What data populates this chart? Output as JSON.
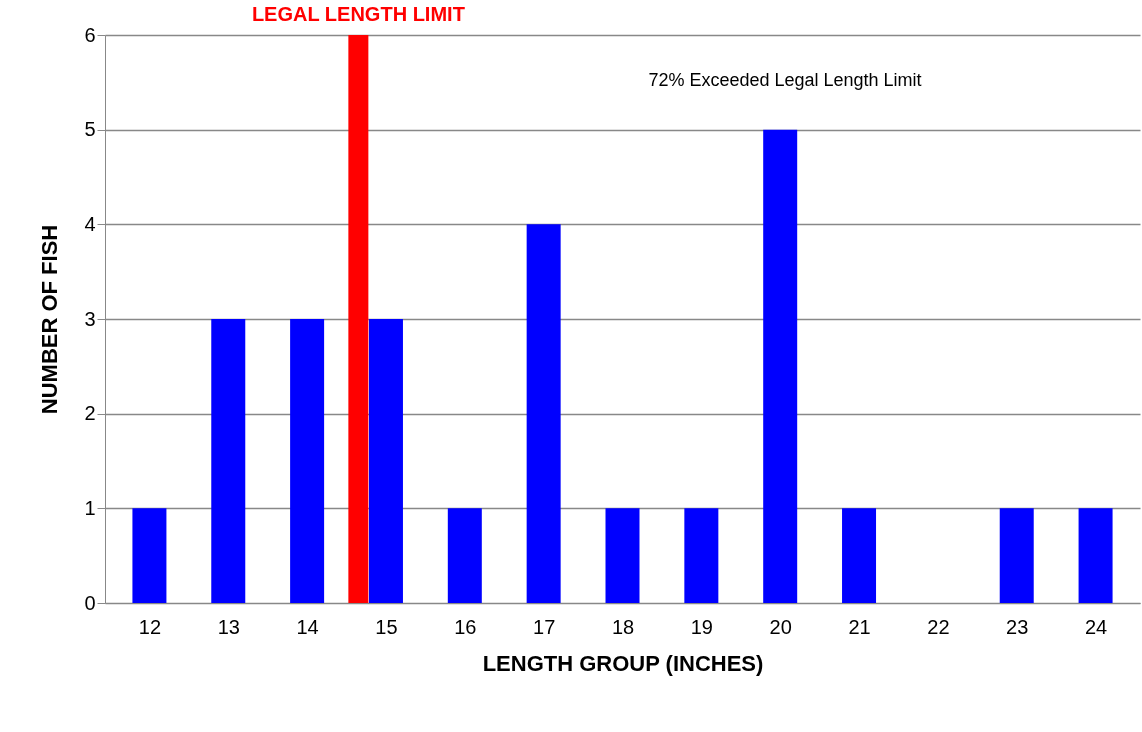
{
  "chart_data": {
    "type": "bar",
    "xlabel": "LENGTH GROUP (INCHES)",
    "ylabel": "NUMBER OF FISH",
    "x": [
      12,
      13,
      14,
      15,
      16,
      17,
      18,
      19,
      20,
      21,
      22,
      23,
      24
    ],
    "values": [
      1,
      3,
      3,
      3,
      1,
      4,
      1,
      1,
      5,
      1,
      0,
      1,
      1
    ],
    "color": "#0000ff",
    "xlim": [
      11.5,
      24.5
    ],
    "xticks": [
      12,
      13,
      14,
      15,
      16,
      17,
      18,
      19,
      20,
      21,
      22,
      23,
      24
    ],
    "ylim": [
      0,
      6
    ],
    "yticks": [
      0,
      1,
      2,
      3,
      4,
      5,
      6
    ],
    "grid": "y",
    "ref_lines": [
      {
        "axis": "x",
        "value": 14.65,
        "label": "LEGAL LENGTH LIMIT",
        "color": "#ff0000"
      }
    ],
    "annotations": [
      "72% Exceeded Legal Length Limit"
    ]
  }
}
